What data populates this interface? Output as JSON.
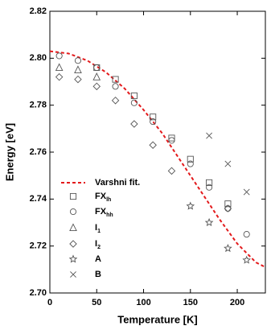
{
  "chart_data": {
    "type": "scatter",
    "xlabel": "Temperature [K]",
    "ylabel": "Energy [eV]",
    "xlim": [
      0,
      230
    ],
    "ylim": [
      2.7,
      2.82
    ],
    "xticks": [
      0,
      50,
      100,
      150,
      200
    ],
    "yticks": [
      {
        "value": 2.7,
        "label": "2.70"
      },
      2.72,
      2.74,
      2.76,
      2.78,
      {
        "value": 2.8,
        "label": "2.80"
      },
      2.82
    ],
    "series": [
      {
        "name": "Varshni fit.",
        "style": "dashed-line",
        "color": "#e31a1c",
        "x": [
          0,
          20,
          40,
          60,
          80,
          100,
          120,
          140,
          160,
          180,
          200,
          220,
          230
        ],
        "values": [
          2.803,
          2.802,
          2.799,
          2.794,
          2.787,
          2.778,
          2.768,
          2.756,
          2.744,
          2.732,
          2.721,
          2.713,
          2.711
        ]
      },
      {
        "name": "FX",
        "subscript": "lh",
        "marker": "square",
        "color": "#555555",
        "x": [
          50,
          70,
          90,
          110,
          130,
          150,
          170,
          190
        ],
        "values": [
          2.796,
          2.791,
          2.784,
          2.775,
          2.766,
          2.757,
          2.747,
          2.738
        ]
      },
      {
        "name": "FX",
        "subscript": "hh",
        "marker": "circle",
        "color": "#555555",
        "x": [
          10,
          30,
          50,
          70,
          90,
          110,
          130,
          150,
          170,
          190,
          210
        ],
        "values": [
          2.801,
          2.799,
          2.796,
          2.788,
          2.781,
          2.773,
          2.765,
          2.755,
          2.745,
          2.736,
          2.725
        ]
      },
      {
        "name": "I",
        "subscript": "1",
        "marker": "triangle",
        "color": "#555555",
        "x": [
          10,
          30,
          50
        ],
        "values": [
          2.796,
          2.795,
          2.792
        ]
      },
      {
        "name": "I",
        "subscript": "2",
        "marker": "diamond",
        "color": "#555555",
        "x": [
          10,
          30,
          50,
          70,
          90,
          110,
          130,
          190
        ],
        "values": [
          2.792,
          2.791,
          2.788,
          2.782,
          2.772,
          2.763,
          2.752,
          2.736
        ]
      },
      {
        "name": "A",
        "marker": "star",
        "color": "#555555",
        "x": [
          150,
          170,
          190,
          210
        ],
        "values": [
          2.737,
          2.73,
          2.719,
          2.714
        ]
      },
      {
        "name": "B",
        "marker": "cross",
        "color": "#555555",
        "x": [
          170,
          190,
          210
        ],
        "values": [
          2.767,
          2.755,
          2.743
        ]
      }
    ]
  }
}
